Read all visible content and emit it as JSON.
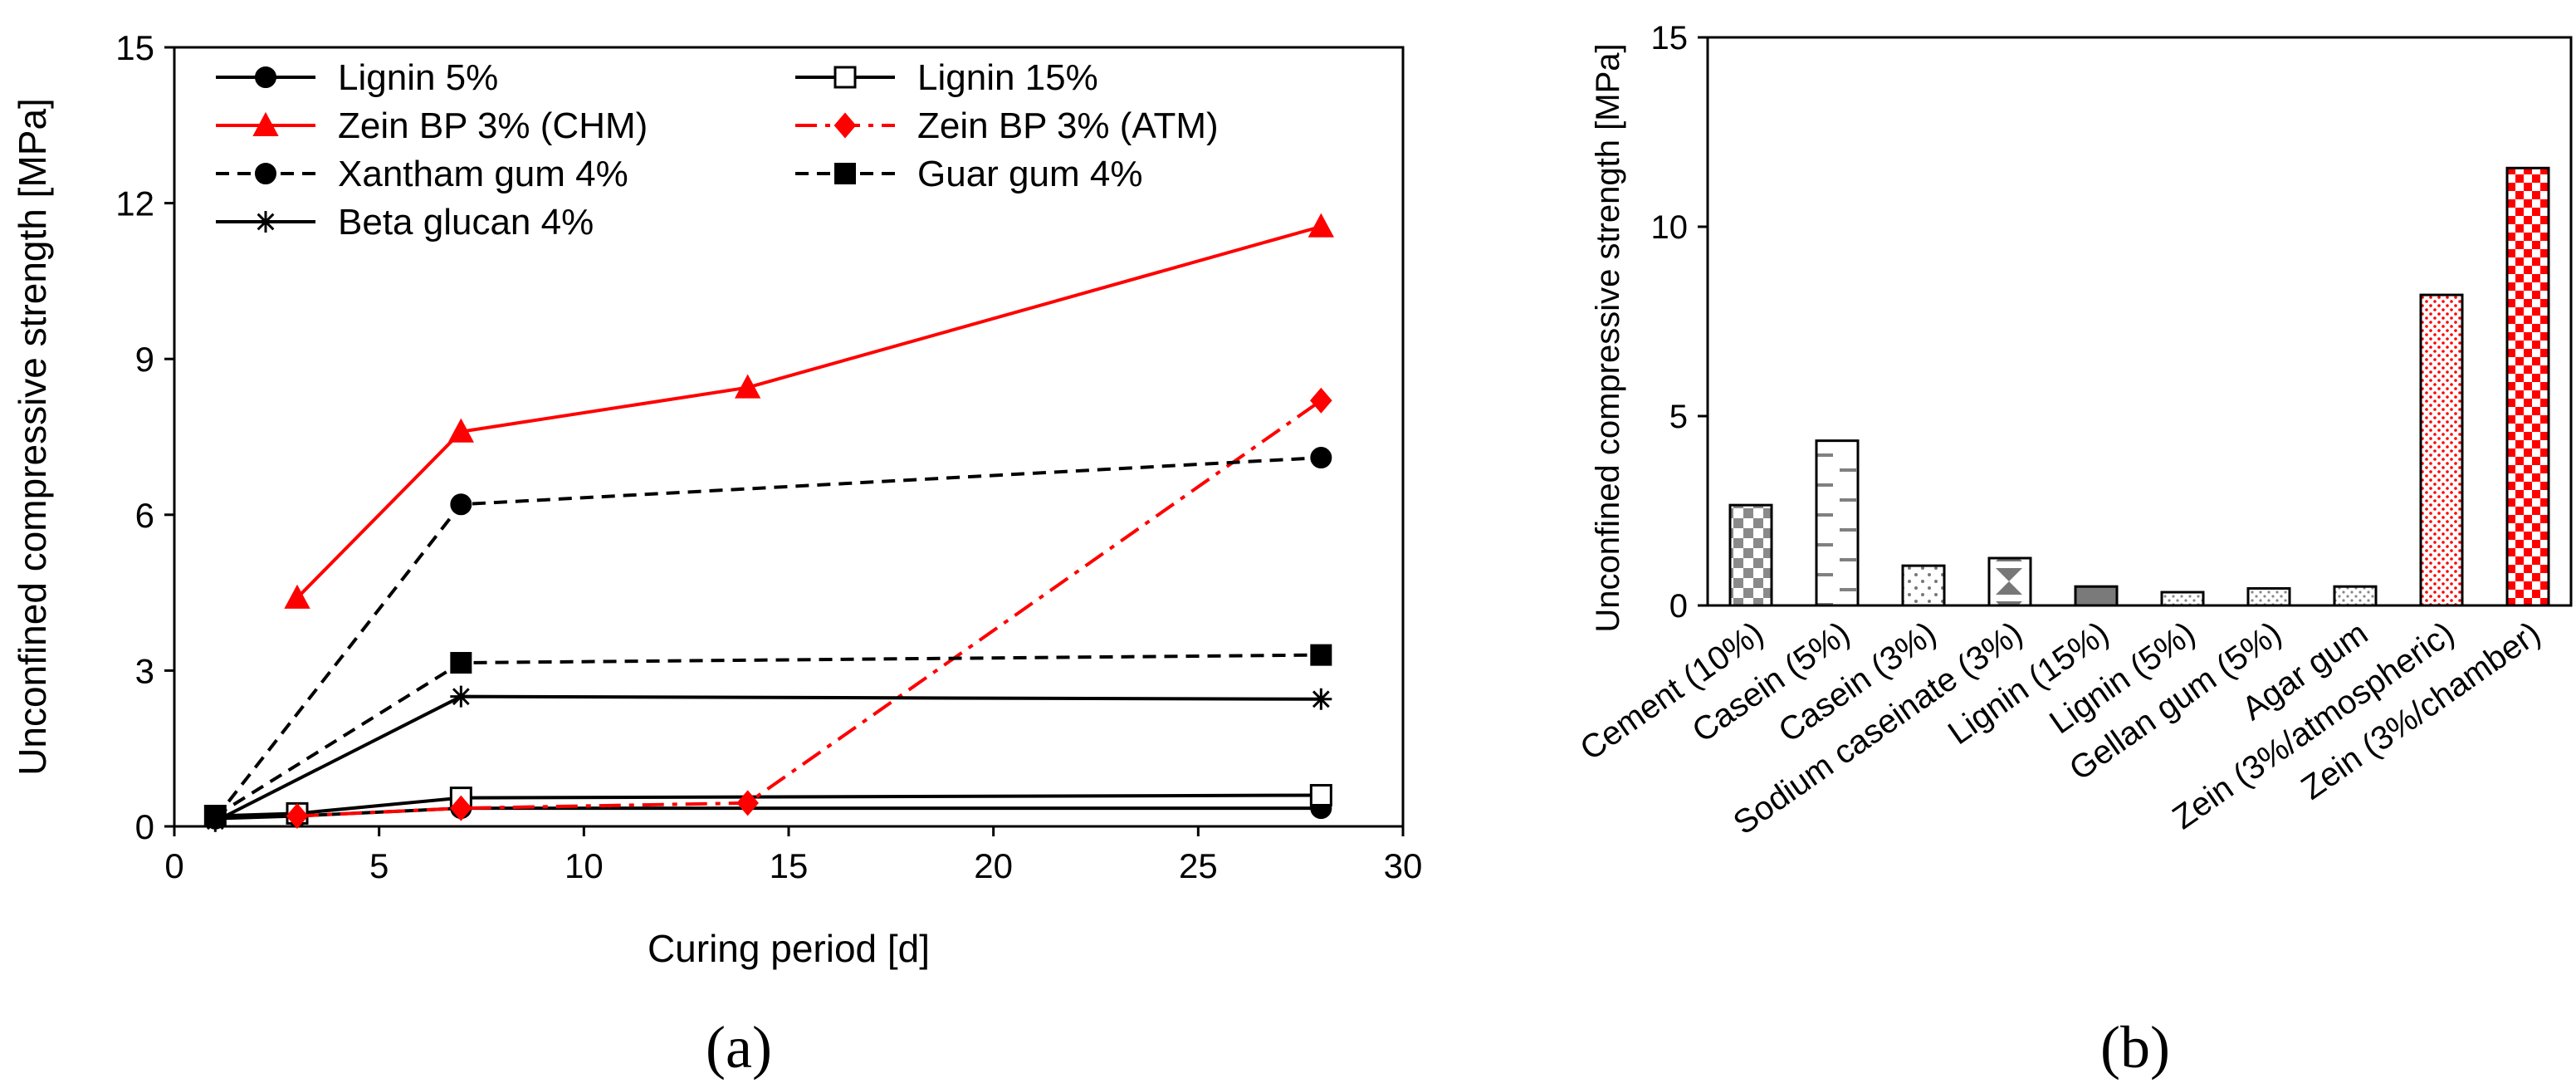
{
  "chart_data": [
    {
      "panel_label": "(a)",
      "type": "line",
      "xlabel": "Curing period [d]",
      "ylabel": "Unconfined compressive strength [MPa]",
      "xlim": [
        0,
        30
      ],
      "ylim": [
        0,
        15
      ],
      "xticks": [
        "0",
        "5",
        "10",
        "15",
        "20",
        "25",
        "30"
      ],
      "yticks": [
        "0",
        "3",
        "6",
        "9",
        "12",
        "15"
      ],
      "series": [
        {
          "name": "Lignin 5%",
          "color": "#000000",
          "dash": "solid",
          "marker": "circle-filled",
          "x": [
            1,
            3,
            7,
            28
          ],
          "y": [
            0.15,
            0.2,
            0.35,
            0.35
          ]
        },
        {
          "name": "Lignin 15%",
          "color": "#000000",
          "dash": "solid",
          "marker": "square-open",
          "x": [
            1,
            3,
            7,
            28
          ],
          "y": [
            0.2,
            0.25,
            0.55,
            0.6
          ]
        },
        {
          "name": "Zein BP 3% (CHM)",
          "color": "#ff0000",
          "dash": "solid",
          "marker": "triangle",
          "x": [
            3,
            7,
            14,
            28
          ],
          "y": [
            4.4,
            7.6,
            8.45,
            11.55
          ]
        },
        {
          "name": "Zein BP 3% (ATM)",
          "color": "#ff0000",
          "dash": "dashdot",
          "marker": "diamond",
          "x": [
            3,
            7,
            14,
            28
          ],
          "y": [
            0.2,
            0.35,
            0.45,
            8.2
          ]
        },
        {
          "name": "Xantham gum 4%",
          "color": "#000000",
          "dash": "dashed",
          "marker": "circle-filled",
          "x": [
            1,
            7,
            28
          ],
          "y": [
            0.15,
            6.2,
            7.1
          ]
        },
        {
          "name": "Guar gum 4%",
          "color": "#000000",
          "dash": "dashed",
          "marker": "square-filled",
          "x": [
            1,
            7,
            28
          ],
          "y": [
            0.2,
            3.15,
            3.3
          ]
        },
        {
          "name": "Beta glucan 4%",
          "color": "#000000",
          "dash": "solid",
          "marker": "star",
          "x": [
            1,
            7,
            28
          ],
          "y": [
            0.1,
            2.5,
            2.45
          ]
        }
      ]
    },
    {
      "panel_label": "(b)",
      "type": "bar",
      "ylabel": "Unconfined compressive strength [MPa]",
      "ylim": [
        0,
        15
      ],
      "yticks": [
        "0",
        "5",
        "10",
        "15"
      ],
      "categories": [
        "Cement (10%)",
        "Casein (5%)",
        "Casein (3%)",
        "Sodium caseinate (3%)",
        "Lignin (15%)",
        "Lignin (5%)",
        "Gellan gum (5%)",
        "Agar gum",
        "Zein (3%/atmospheric)",
        "Zein (3%/chamber)"
      ],
      "values": [
        2.65,
        4.35,
        1.05,
        1.25,
        0.5,
        0.35,
        0.45,
        0.5,
        8.2,
        11.55
      ],
      "patterns": [
        "checker-grey",
        "dashes-grey",
        "dots-sparse",
        "hourglass",
        "solid-grey",
        "dots-fine",
        "dots-fine",
        "dots-fine",
        "dots-red",
        "checker-red"
      ]
    }
  ]
}
